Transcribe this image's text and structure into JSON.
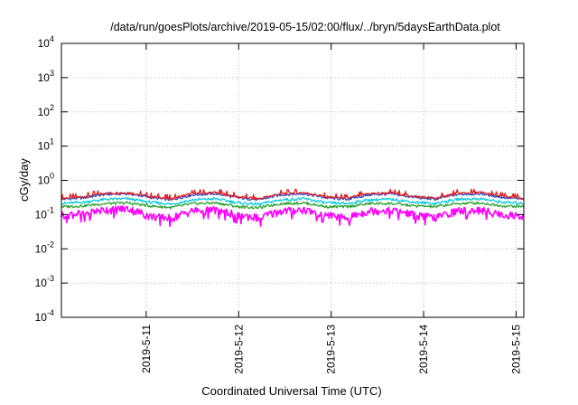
{
  "chart_data": {
    "type": "line",
    "title": "/data/run/goesPlots/archive/2019-05-15/02:00/flux/../bryn/5daysEarthData.plot",
    "xlabel": "Coordinated Universal Time (UTC)",
    "ylabel": "cGy/day",
    "yscale": "log",
    "ylim": [
      0.0001,
      10000
    ],
    "xlim": [
      "2019-05-10 02:00",
      "2019-05-15 02:00"
    ],
    "grid": true,
    "legend": "none",
    "y_ticks": [
      {
        "base": "10",
        "exp": "-4",
        "value": 0.0001
      },
      {
        "base": "10",
        "exp": "-3",
        "value": 0.001
      },
      {
        "base": "10",
        "exp": "-2",
        "value": 0.01
      },
      {
        "base": "10",
        "exp": "-1",
        "value": 0.1
      },
      {
        "base": "10",
        "exp": "0",
        "value": 1
      },
      {
        "base": "10",
        "exp": "1",
        "value": 10
      },
      {
        "base": "10",
        "exp": "2",
        "value": 100
      },
      {
        "base": "10",
        "exp": "3",
        "value": 1000
      },
      {
        "base": "10",
        "exp": "4",
        "value": 10000
      }
    ],
    "x_ticks": [
      {
        "label": "2019-5-11",
        "value": "2019-05-11"
      },
      {
        "label": "2019-5-12",
        "value": "2019-05-12"
      },
      {
        "label": "2019-5-13",
        "value": "2019-05-13"
      },
      {
        "label": "2019-5-14",
        "value": "2019-05-14"
      },
      {
        "label": "2019-5-15",
        "value": "2019-05-15"
      }
    ],
    "x": [
      "2019-05-10 02:00",
      "2019-05-10 06:00",
      "2019-05-10 12:00",
      "2019-05-10 18:00",
      "2019-05-11 00:00",
      "2019-05-11 06:00",
      "2019-05-11 12:00",
      "2019-05-11 18:00",
      "2019-05-12 00:00",
      "2019-05-12 06:00",
      "2019-05-12 12:00",
      "2019-05-12 18:00",
      "2019-05-13 00:00",
      "2019-05-13 06:00",
      "2019-05-13 12:00",
      "2019-05-13 18:00",
      "2019-05-14 00:00",
      "2019-05-14 06:00",
      "2019-05-14 12:00",
      "2019-05-14 18:00",
      "2019-05-15 00:00",
      "2019-05-15 02:00"
    ],
    "series": [
      {
        "color": "#e41a1c",
        "values": [
          0.3,
          0.33,
          0.42,
          0.44,
          0.34,
          0.29,
          0.41,
          0.44,
          0.33,
          0.29,
          0.41,
          0.44,
          0.33,
          0.3,
          0.41,
          0.43,
          0.34,
          0.3,
          0.42,
          0.44,
          0.34,
          0.3
        ]
      },
      {
        "color": "#1f4fd6",
        "values": [
          0.28,
          0.31,
          0.39,
          0.41,
          0.32,
          0.27,
          0.38,
          0.41,
          0.31,
          0.27,
          0.38,
          0.41,
          0.31,
          0.28,
          0.38,
          0.4,
          0.32,
          0.28,
          0.39,
          0.41,
          0.32,
          0.28
        ]
      },
      {
        "color": "#00c8e0",
        "values": [
          0.21,
          0.23,
          0.28,
          0.29,
          0.23,
          0.2,
          0.27,
          0.29,
          0.22,
          0.2,
          0.27,
          0.29,
          0.22,
          0.21,
          0.27,
          0.28,
          0.23,
          0.21,
          0.28,
          0.29,
          0.23,
          0.21
        ]
      },
      {
        "color": "#2ca02c",
        "values": [
          0.17,
          0.18,
          0.21,
          0.22,
          0.18,
          0.16,
          0.21,
          0.22,
          0.17,
          0.16,
          0.21,
          0.22,
          0.17,
          0.17,
          0.21,
          0.21,
          0.18,
          0.17,
          0.21,
          0.22,
          0.18,
          0.17
        ]
      },
      {
        "color": "#ff00ff",
        "values": [
          0.1,
          0.11,
          0.14,
          0.15,
          0.09,
          0.08,
          0.13,
          0.14,
          0.1,
          0.08,
          0.13,
          0.14,
          0.1,
          0.08,
          0.13,
          0.14,
          0.1,
          0.08,
          0.13,
          0.14,
          0.1,
          0.09
        ]
      }
    ]
  }
}
